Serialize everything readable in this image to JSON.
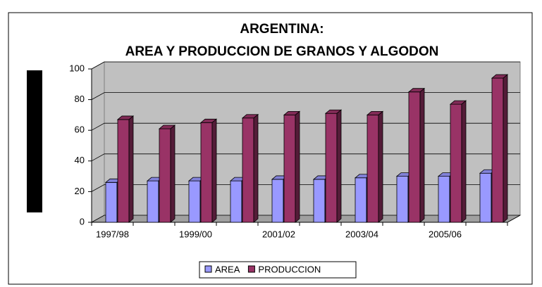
{
  "chart_data": {
    "type": "bar3d",
    "title": "ARGENTINA:",
    "subtitle": "AREA Y PRODUCCION DE GRANOS Y ALGODON",
    "categories": [
      "1997/98",
      null,
      "1999/00",
      null,
      "2001/02",
      null,
      "2003/04",
      null,
      "2005/06",
      null
    ],
    "series": [
      {
        "name": "AREA",
        "color": "#9999ff",
        "values": [
          26,
          27,
          27,
          27,
          28,
          28,
          29,
          30,
          30,
          32
        ]
      },
      {
        "name": "PRODUCCION",
        "color": "#993366",
        "values": [
          67,
          61,
          65,
          68,
          70,
          71,
          70,
          85,
          77,
          94
        ]
      }
    ],
    "ylim": [
      0,
      100
    ],
    "yticks": [
      0,
      20,
      40,
      60,
      80,
      100
    ],
    "grid": true,
    "legend": "bottom"
  }
}
